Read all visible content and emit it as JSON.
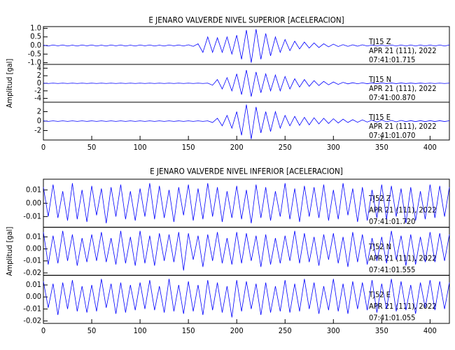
{
  "chart_data": [
    {
      "type": "line",
      "title": "E JENARO VALVERDE NIVEL SUPERIOR [ACELERACION]",
      "y_label": "Amplitud [gal]",
      "xlim": [
        0,
        420
      ],
      "xticks": [
        0,
        50,
        100,
        150,
        200,
        250,
        300,
        350,
        400
      ],
      "x": [
        0,
        5,
        10,
        15,
        20,
        25,
        30,
        35,
        40,
        45,
        50,
        55,
        60,
        65,
        70,
        75,
        80,
        85,
        90,
        95,
        100,
        105,
        110,
        115,
        120,
        125,
        130,
        135,
        140,
        145,
        150,
        155,
        160,
        165,
        170,
        175,
        180,
        185,
        190,
        195,
        200,
        205,
        210,
        215,
        220,
        225,
        230,
        235,
        240,
        245,
        250,
        255,
        260,
        265,
        270,
        275,
        280,
        285,
        290,
        295,
        300,
        305,
        310,
        315,
        320,
        325,
        330,
        335,
        340,
        345,
        350,
        355,
        360,
        365,
        370,
        375,
        380,
        385,
        390,
        395,
        400,
        405,
        410,
        415,
        420
      ],
      "series": [
        {
          "name": "TJ15   Z",
          "date": "APR 21 (111), 2022",
          "time": "07:41:01.715",
          "color": "#0000ff",
          "ylim": [
            -1.1,
            1.1
          ],
          "yticks": [
            {
              "value": 1.0,
              "label": "1.0"
            },
            0.5,
            {
              "value": 0.0,
              "label": "0.0"
            },
            -0.5,
            {
              "value": -1.0,
              "label": "-1.0"
            }
          ],
          "values": [
            0.02,
            -0.03,
            0.03,
            -0.02,
            0.03,
            -0.03,
            0.02,
            -0.03,
            0.03,
            -0.02,
            0.03,
            -0.03,
            0.02,
            -0.03,
            0.03,
            -0.02,
            0.03,
            -0.03,
            0.02,
            -0.03,
            0.03,
            -0.02,
            0.03,
            -0.03,
            0.02,
            -0.03,
            0.03,
            -0.02,
            0.03,
            -0.03,
            0.04,
            -0.05,
            0.1,
            -0.4,
            0.5,
            -0.4,
            0.45,
            -0.4,
            0.5,
            -0.5,
            0.6,
            -0.8,
            0.9,
            -1.0,
            0.95,
            -0.8,
            0.7,
            -0.6,
            0.5,
            -0.4,
            0.35,
            -0.3,
            0.25,
            -0.2,
            0.2,
            -0.15,
            0.15,
            -0.12,
            0.1,
            -0.08,
            0.08,
            -0.06,
            0.05,
            -0.05,
            0.04,
            -0.04,
            0.04,
            -0.03,
            0.03,
            -0.03,
            0.03,
            -0.03,
            0.03,
            -0.03,
            0.03,
            -0.03,
            0.03,
            -0.03,
            0.03,
            -0.03,
            0.03,
            -0.03,
            0.03,
            -0.03,
            0.03
          ]
        },
        {
          "name": "TJ15   N",
          "date": "APR 21 (111), 2022",
          "time": "07:41:00.870",
          "color": "#0000ff",
          "ylim": [
            -5,
            5
          ],
          "yticks": [
            4,
            2,
            0,
            -2,
            -4
          ],
          "values": [
            0.05,
            -0.05,
            0.05,
            -0.05,
            0.05,
            -0.05,
            0.05,
            -0.05,
            0.05,
            -0.05,
            0.05,
            -0.05,
            0.05,
            -0.05,
            0.05,
            -0.05,
            0.05,
            -0.05,
            0.05,
            -0.05,
            0.05,
            -0.05,
            0.05,
            -0.05,
            0.05,
            -0.05,
            0.05,
            -0.05,
            0.05,
            -0.05,
            0.05,
            -0.05,
            0.05,
            -0.05,
            0.05,
            -0.5,
            1,
            -1.5,
            1.5,
            -2,
            2.5,
            -3,
            3.5,
            -3.5,
            3,
            -2.5,
            2.5,
            -2,
            2.2,
            -2,
            1.8,
            -1.5,
            1.2,
            -1,
            1,
            -0.8,
            0.7,
            -0.6,
            0.5,
            -0.4,
            0.35,
            -0.3,
            0.25,
            -0.15,
            0.15,
            -0.12,
            0.12,
            -0.1,
            0.1,
            -0.1,
            0.1,
            -0.08,
            0.08,
            -0.08,
            0.08,
            -0.06,
            0.06,
            -0.06,
            0.06,
            -0.05,
            0.05,
            -0.05,
            0.05,
            -0.05,
            0.05
          ]
        },
        {
          "name": "TJ15   E",
          "date": "APR 21 (111), 2022",
          "time": "07:41:01.070",
          "color": "#0000ff",
          "ylim": [
            -4,
            4
          ],
          "yticks": [
            2,
            0,
            -2
          ],
          "values": [
            0.05,
            -0.05,
            0.05,
            -0.05,
            0.05,
            -0.05,
            0.05,
            -0.05,
            0.05,
            -0.05,
            0.05,
            -0.05,
            0.05,
            -0.05,
            0.05,
            -0.05,
            0.05,
            -0.05,
            0.05,
            -0.05,
            0.05,
            -0.05,
            0.05,
            -0.05,
            0.05,
            -0.05,
            0.05,
            -0.05,
            0.05,
            -0.05,
            0.05,
            -0.05,
            0.05,
            -0.05,
            0.05,
            -0.3,
            0.6,
            -1,
            1.2,
            -1.5,
            2,
            -3,
            3.5,
            -3.8,
            3,
            -2.5,
            2,
            -2.2,
            2,
            -1.5,
            1.2,
            -1,
            1,
            -0.9,
            0.8,
            -0.8,
            0.7,
            -0.6,
            0.6,
            -0.5,
            0.5,
            -0.4,
            0.4,
            -0.3,
            0.3,
            -0.25,
            0.25,
            -0.2,
            0.2,
            -0.2,
            0.2,
            -0.15,
            0.15,
            -0.15,
            0.15,
            -0.1,
            0.1,
            -0.1,
            0.1,
            -0.1,
            0.1,
            -0.08,
            0.08,
            -0.08,
            0.08
          ]
        }
      ]
    },
    {
      "type": "line",
      "title": "E JENARO VALVERDE NIVEL INFERIOR [ACELERACION]",
      "y_label": "Amplitud [gal]",
      "xlim": [
        0,
        420
      ],
      "xticks": [
        0,
        50,
        100,
        150,
        200,
        250,
        300,
        350,
        400
      ],
      "x": [
        0,
        5,
        10,
        15,
        20,
        25,
        30,
        35,
        40,
        45,
        50,
        55,
        60,
        65,
        70,
        75,
        80,
        85,
        90,
        95,
        100,
        105,
        110,
        115,
        120,
        125,
        130,
        135,
        140,
        145,
        150,
        155,
        160,
        165,
        170,
        175,
        180,
        185,
        190,
        195,
        200,
        205,
        210,
        215,
        220,
        225,
        230,
        235,
        240,
        245,
        250,
        255,
        260,
        265,
        270,
        275,
        280,
        285,
        290,
        295,
        300,
        305,
        310,
        315,
        320,
        325,
        330,
        335,
        340,
        345,
        350,
        355,
        360,
        365,
        370,
        375,
        380,
        385,
        390,
        395,
        400,
        405,
        410,
        415,
        420
      ],
      "series": [
        {
          "name": "TJ52   Z",
          "date": "APR 21 (111), 2022",
          "time": "07:41:01.720",
          "color": "#0000ff",
          "ylim": [
            -0.018,
            0.018
          ],
          "yticks": [
            0.01,
            {
              "value": 0,
              "label": "0.00"
            },
            -0.01
          ],
          "values": [
            0.012,
            -0.01,
            0.014,
            -0.011,
            0.009,
            -0.013,
            0.015,
            -0.012,
            0.01,
            -0.014,
            0.013,
            -0.009,
            0.011,
            -0.015,
            0.012,
            -0.01,
            0.014,
            -0.012,
            0.009,
            -0.013,
            0.011,
            -0.01,
            0.015,
            -0.012,
            0.013,
            -0.011,
            0.01,
            -0.014,
            0.012,
            -0.009,
            0.014,
            -0.013,
            0.011,
            -0.012,
            0.015,
            -0.01,
            0.012,
            -0.014,
            0.009,
            -0.011,
            0.013,
            -0.012,
            0.01,
            -0.015,
            0.014,
            -0.011,
            0.012,
            -0.013,
            0.009,
            -0.01,
            0.015,
            -0.012,
            0.011,
            -0.014,
            0.013,
            -0.01,
            0.012,
            -0.011,
            0.014,
            -0.013,
            0.01,
            -0.012,
            0.015,
            -0.009,
            0.011,
            -0.014,
            0.012,
            -0.013,
            0.01,
            -0.011,
            0.014,
            -0.012,
            0.013,
            -0.01,
            0.011,
            -0.015,
            0.012,
            -0.013,
            0.009,
            -0.012,
            0.014,
            -0.011,
            0.013,
            -0.01,
            0.012
          ]
        },
        {
          "name": "TJ52   N",
          "date": "APR 21 (111), 2022",
          "time": "07:41:01.555",
          "color": "#0000ff",
          "ylim": [
            -0.022,
            0.018
          ],
          "yticks": [
            0.01,
            {
              "value": 0,
              "label": "0.00"
            },
            -0.01,
            -0.02
          ],
          "values": [
            0.014,
            -0.013,
            0.011,
            -0.012,
            0.015,
            -0.01,
            0.012,
            -0.014,
            0.009,
            -0.011,
            0.012,
            -0.01,
            0.014,
            -0.011,
            0.009,
            -0.013,
            0.015,
            -0.012,
            0.01,
            -0.014,
            0.015,
            -0.012,
            0.011,
            -0.014,
            0.013,
            -0.01,
            0.012,
            -0.011,
            0.014,
            -0.018,
            0.013,
            -0.009,
            0.011,
            -0.015,
            0.012,
            -0.01,
            0.014,
            -0.012,
            0.009,
            -0.013,
            0.014,
            -0.012,
            0.013,
            -0.01,
            0.011,
            -0.015,
            0.012,
            -0.013,
            0.009,
            -0.012,
            0.011,
            -0.01,
            0.015,
            -0.012,
            0.013,
            -0.011,
            0.01,
            -0.014,
            0.012,
            -0.009,
            0.013,
            -0.012,
            0.01,
            -0.015,
            0.014,
            -0.011,
            0.012,
            -0.013,
            0.009,
            -0.01,
            0.01,
            -0.012,
            0.015,
            -0.009,
            0.011,
            -0.014,
            0.012,
            -0.013,
            0.01,
            -0.011,
            0.014,
            -0.011,
            0.013,
            -0.01,
            0.012
          ]
        },
        {
          "name": "TJ52   E",
          "date": "APR 21 (111), 2022",
          "time": "07:41:01.055",
          "color": "#0000ff",
          "ylim": [
            -0.022,
            0.018
          ],
          "yticks": [
            0.01,
            {
              "value": 0,
              "label": "0.00"
            },
            -0.01,
            -0.02
          ],
          "values": [
            0.013,
            -0.009,
            0.011,
            -0.015,
            0.012,
            -0.01,
            0.014,
            -0.012,
            0.009,
            -0.013,
            0.01,
            -0.012,
            0.015,
            -0.009,
            0.011,
            -0.014,
            0.012,
            -0.013,
            0.01,
            -0.011,
            0.012,
            -0.01,
            0.014,
            -0.011,
            0.009,
            -0.013,
            0.015,
            -0.012,
            0.01,
            -0.014,
            0.013,
            -0.012,
            0.01,
            -0.015,
            0.014,
            -0.011,
            0.012,
            -0.013,
            0.009,
            -0.017,
            0.014,
            -0.012,
            0.013,
            -0.01,
            0.011,
            -0.015,
            0.012,
            -0.013,
            0.009,
            -0.012,
            0.014,
            -0.013,
            0.011,
            -0.012,
            0.015,
            -0.01,
            0.012,
            -0.014,
            0.009,
            -0.011,
            0.015,
            -0.012,
            0.011,
            -0.014,
            0.013,
            -0.01,
            0.012,
            -0.011,
            0.014,
            -0.013,
            0.011,
            -0.01,
            0.015,
            -0.012,
            0.013,
            -0.011,
            0.01,
            -0.014,
            0.012,
            -0.009,
            0.014,
            -0.011,
            0.013,
            -0.01,
            0.012
          ]
        }
      ]
    }
  ]
}
